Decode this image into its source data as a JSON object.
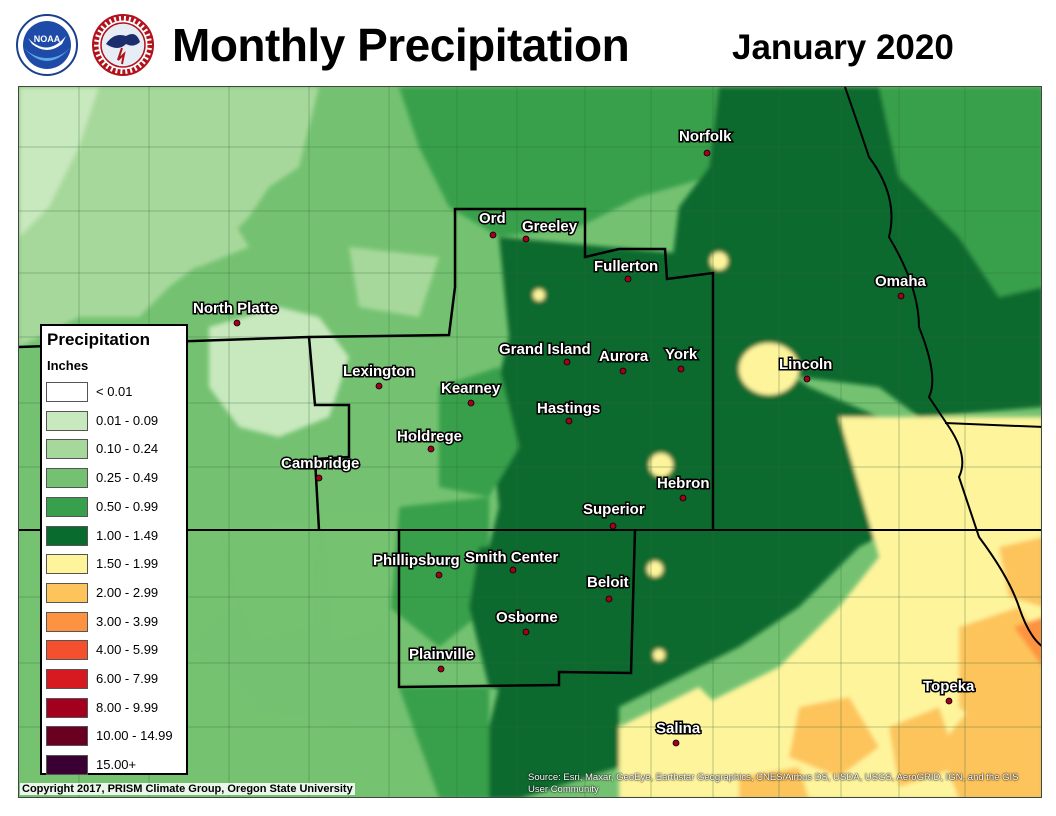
{
  "header": {
    "title": "Monthly Precipitation",
    "date": "January 2020",
    "logos": [
      {
        "name": "noaa-logo",
        "text": "NOAA"
      },
      {
        "name": "nws-logo",
        "text": "NATIONAL WEATHER SERVICE"
      }
    ]
  },
  "legend": {
    "title": "Precipitation",
    "units": "Inches",
    "classes": [
      {
        "label": "< 0.01",
        "color": "#ffffff"
      },
      {
        "label": "0.01 - 0.09",
        "color": "#c8e8bd"
      },
      {
        "label": "0.10 - 0.24",
        "color": "#a7d89b"
      },
      {
        "label": "0.25 - 0.49",
        "color": "#74c271"
      },
      {
        "label": "0.50 - 0.99",
        "color": "#38a04c"
      },
      {
        "label": "1.00 - 1.49",
        "color": "#0a6b2e"
      },
      {
        "label": "1.50 - 1.99",
        "color": "#fef49c"
      },
      {
        "label": "2.00 - 2.99",
        "color": "#fdc45b"
      },
      {
        "label": "3.00 - 3.99",
        "color": "#fd9341"
      },
      {
        "label": "4.00 - 5.99",
        "color": "#f5502d"
      },
      {
        "label": "6.00 - 7.99",
        "color": "#d71920"
      },
      {
        "label": "8.00 - 9.99",
        "color": "#a3001d"
      },
      {
        "label": "10.00 - 14.99",
        "color": "#6a0021"
      },
      {
        "label": "15.00+",
        "color": "#3a0033"
      }
    ]
  },
  "cities": [
    {
      "name": "Norfolk"
    },
    {
      "name": "Ord"
    },
    {
      "name": "Greeley"
    },
    {
      "name": "Fullerton"
    },
    {
      "name": "Omaha"
    },
    {
      "name": "North Platte"
    },
    {
      "name": "Grand Island"
    },
    {
      "name": "Aurora"
    },
    {
      "name": "York"
    },
    {
      "name": "Lincoln"
    },
    {
      "name": "Lexington"
    },
    {
      "name": "Kearney"
    },
    {
      "name": "Hastings"
    },
    {
      "name": "Holdrege"
    },
    {
      "name": "Cambridge"
    },
    {
      "name": "Hebron"
    },
    {
      "name": "Superior"
    },
    {
      "name": "Phillipsburg"
    },
    {
      "name": "Smith Center"
    },
    {
      "name": "Beloit"
    },
    {
      "name": "Osborne"
    },
    {
      "name": "Plainville"
    },
    {
      "name": "Topeka"
    },
    {
      "name": "Salina"
    }
  ],
  "footer": {
    "copyright": "Copyright 2017, PRISM Climate Group, Oregon State University",
    "attribution": "Source: Esri, Maxar, GeoEye, Earthstar Geographics, CNES/Airbus DS, USDA, USGS, AeroGRID, IGN, and the GIS User Community"
  }
}
